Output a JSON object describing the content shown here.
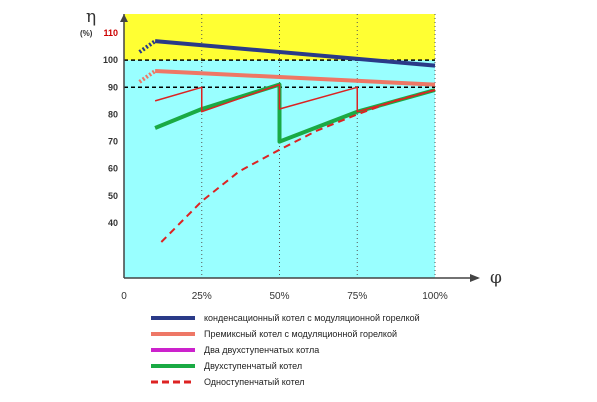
{
  "chart_data": {
    "type": "line",
    "xlabel": "φ",
    "ylabel": "η",
    "ylabel_unit": "(%)",
    "xlim": [
      0,
      100
    ],
    "ylim": [
      0,
      110
    ],
    "x_ticks": [
      {
        "value": 0,
        "label": "0"
      },
      {
        "value": 25,
        "label": "25%"
      },
      {
        "value": 50,
        "label": "50%"
      },
      {
        "value": 75,
        "label": "75%"
      },
      {
        "value": 100,
        "label": "100%"
      }
    ],
    "y_ticks": [
      {
        "value": 40,
        "label": "40"
      },
      {
        "value": 50,
        "label": "50"
      },
      {
        "value": 60,
        "label": "60"
      },
      {
        "value": 70,
        "label": "70"
      },
      {
        "value": 80,
        "label": "80"
      },
      {
        "value": 90,
        "label": "90"
      },
      {
        "value": 100,
        "label": "100"
      },
      {
        "value": 110,
        "label": "110"
      }
    ],
    "y_tick_highlight": 110,
    "bands": [
      {
        "from": 0,
        "to": 100,
        "color": "#99ffff"
      },
      {
        "from": 100,
        "to": 110,
        "color": "#ffff33"
      }
    ],
    "reference_lines": [
      {
        "axis": "y",
        "value": 100,
        "style": "dashed",
        "color": "#000000"
      },
      {
        "axis": "y",
        "value": 90,
        "style": "dashed",
        "color": "#000000"
      }
    ],
    "grid": "vertical dotted at x ticks",
    "series": [
      {
        "name": "конденсационный котел с модуляционной горелкой",
        "color": "#2a3a88",
        "style": "solid",
        "width": 4,
        "x": [
          10,
          100
        ],
        "y": [
          107,
          98
        ],
        "startup": {
          "x": [
            5,
            10
          ],
          "y": [
            103,
            107
          ]
        }
      },
      {
        "name": "Премиксный котел с модуляционной горелкой",
        "color": "#ee7766",
        "style": "solid",
        "width": 4,
        "x": [
          10,
          100
        ],
        "y": [
          96,
          91
        ],
        "startup": {
          "x": [
            5,
            10
          ],
          "y": [
            92,
            96
          ]
        }
      },
      {
        "name": "Два двухступенчатых котла",
        "color": "#cc22cc",
        "style": "solid",
        "width": 2,
        "x": [],
        "y": []
      },
      {
        "name": "Двухступенчатый котел",
        "color": "#1aaa44",
        "style": "solid",
        "width": 4,
        "x": [
          10,
          25,
          50,
          50,
          75,
          100
        ],
        "y": [
          75,
          82,
          91,
          70,
          81,
          89
        ]
      },
      {
        "name": "Одноступенчатый котел",
        "color": "#dd2222",
        "style": "dashed",
        "width": 2,
        "x": [
          12,
          25,
          37,
          50,
          62,
          75,
          87,
          100
        ],
        "y": [
          33,
          48,
          59,
          67,
          74,
          80,
          85,
          89
        ]
      },
      {
        "name": "red sawtooth",
        "color": "#dd2222",
        "style": "solid",
        "width": 1.5,
        "legend": false,
        "x": [
          10,
          25,
          25,
          50,
          50,
          75,
          75,
          100
        ],
        "y": [
          85,
          90,
          81,
          91,
          82,
          90,
          81,
          89
        ]
      }
    ],
    "legend_position": "bottom-left"
  }
}
